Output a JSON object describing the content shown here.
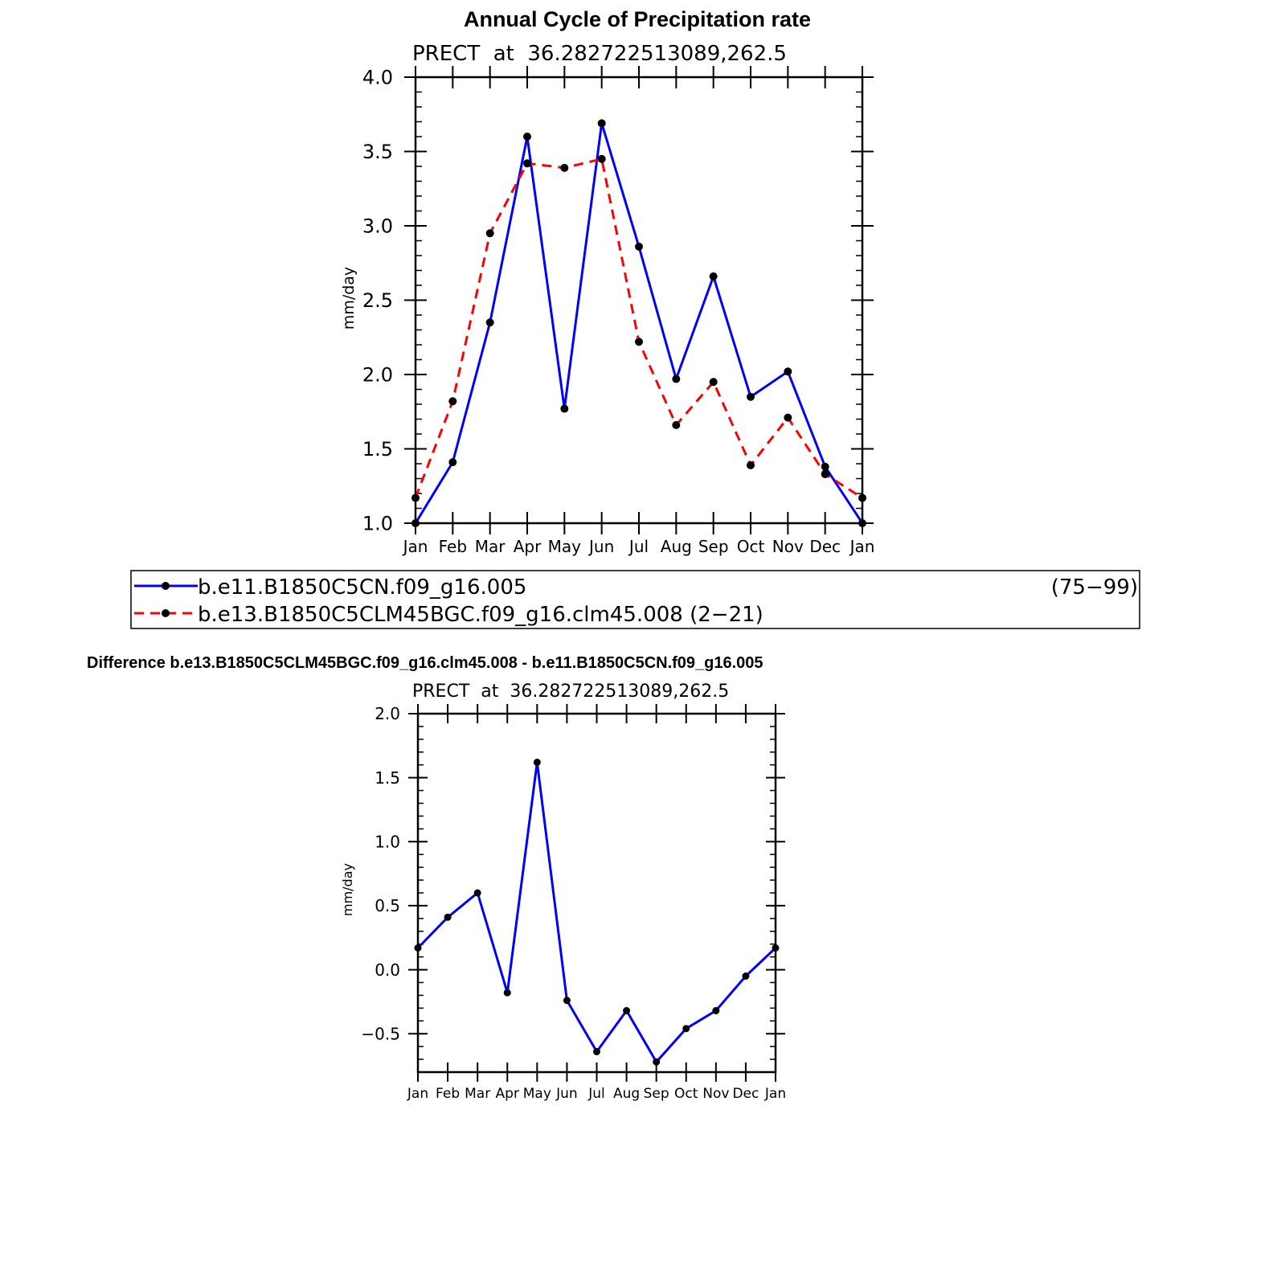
{
  "page": {
    "main_title": "Annual Cycle of Precipitation rate",
    "diff_title": "Difference b.e13.B1850C5CLM45BGC.f09_g16.clm45.008 - b.e11.B1850C5CN.f09_g16.005"
  },
  "legend": {
    "entries": [
      {
        "label": "b.e11.B1850C5CN.f09_g16.005",
        "years": "(75−99)",
        "color": "#0000ff",
        "dash": "solid"
      },
      {
        "label": "b.e13.B1850C5CLM45BGC.f09_g16.clm45.008 (2−21)",
        "years": "",
        "color": "#ff0000",
        "dash": "dashed"
      }
    ]
  },
  "chart_data": [
    {
      "type": "line",
      "subtitle": "PRECT  at  36.282722513089,262.5",
      "ylabel": "mm/day",
      "xlabel": "",
      "categories": [
        "Jan",
        "Feb",
        "Mar",
        "Apr",
        "May",
        "Jun",
        "Jul",
        "Aug",
        "Sep",
        "Oct",
        "Nov",
        "Dec",
        "Jan"
      ],
      "ylim": [
        1.0,
        4.0
      ],
      "yticks": [
        "1.0",
        "1.5",
        "2.0",
        "2.5",
        "3.0",
        "3.5",
        "4.0"
      ],
      "grid": false,
      "series": [
        {
          "name": "b.e11.B1850C5CN.f09_g16.005",
          "color": "#0000ff",
          "dash": "solid",
          "values": [
            1.0,
            1.41,
            2.35,
            3.6,
            1.77,
            3.69,
            2.86,
            1.97,
            2.66,
            1.85,
            2.02,
            1.38,
            1.0
          ]
        },
        {
          "name": "b.e13.B1850C5CLM45BGC.f09_g16.clm45.008",
          "color": "#ff0000",
          "dash": "dashed",
          "values": [
            1.17,
            1.82,
            2.95,
            3.42,
            3.39,
            3.45,
            2.22,
            1.66,
            1.95,
            1.39,
            1.71,
            1.33,
            1.17
          ]
        }
      ]
    },
    {
      "type": "line",
      "subtitle": "PRECT  at  36.282722513089,262.5",
      "ylabel": "mm/day",
      "xlabel": "",
      "categories": [
        "Jan",
        "Feb",
        "Mar",
        "Apr",
        "May",
        "Jun",
        "Jul",
        "Aug",
        "Sep",
        "Oct",
        "Nov",
        "Dec",
        "Jan"
      ],
      "ylim": [
        -0.8,
        2.0
      ],
      "yticks": [
        "−0.5",
        "0.0",
        "0.5",
        "1.0",
        "1.5",
        "2.0"
      ],
      "grid": false,
      "series": [
        {
          "name": "",
          "color": "#0000ff",
          "dash": "solid",
          "values": [
            0.17,
            0.41,
            0.6,
            -0.18,
            1.62,
            -0.24,
            -0.64,
            -0.32,
            -0.72,
            -0.46,
            -0.32,
            -0.05,
            0.17
          ]
        }
      ]
    }
  ]
}
